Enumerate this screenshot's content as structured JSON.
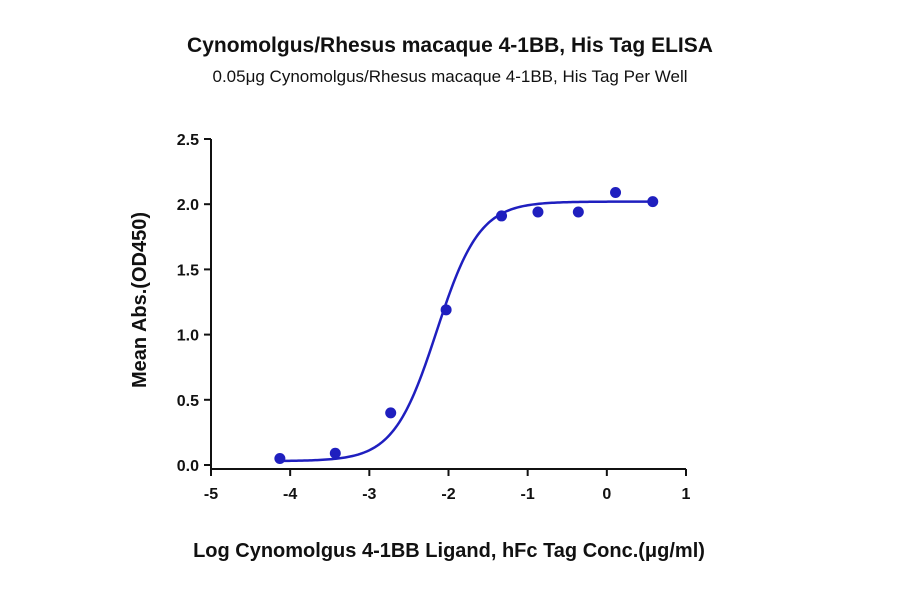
{
  "chart_data": {
    "type": "scatter",
    "title": "Cynomolgus/Rhesus macaque 4-1BB, His Tag ELISA",
    "subtitle": "0.05μg Cynomolgus/Rhesus macaque 4-1BB, His Tag Per Well",
    "xlabel": "Log Cynomolgus 4-1BB Ligand, hFc Tag Conc.(μg/ml)",
    "ylabel": "Mean Abs.(OD450)",
    "xlim": [
      -5,
      1
    ],
    "ylim": [
      0,
      2.5
    ],
    "xticks": [
      -5,
      -4,
      -3,
      -2,
      -1,
      0,
      1
    ],
    "yticks": [
      0,
      0.5,
      1.0,
      1.5,
      2.0,
      2.5
    ],
    "xtick_labels": [
      "-5",
      "-4",
      "-3",
      "-2",
      "-1",
      "0",
      "1"
    ],
    "ytick_labels": [
      "0.0",
      "0.5",
      "1.0",
      "1.5",
      "2.0",
      "2.5"
    ],
    "grid": false,
    "colors": {
      "series": "#1f1fbf",
      "axis": "#111111"
    },
    "points": [
      {
        "x": -4.13,
        "y": 0.05
      },
      {
        "x": -3.43,
        "y": 0.09
      },
      {
        "x": -2.73,
        "y": 0.4
      },
      {
        "x": -2.03,
        "y": 1.19
      },
      {
        "x": -1.33,
        "y": 1.91
      },
      {
        "x": -0.87,
        "y": 1.94
      },
      {
        "x": -0.36,
        "y": 1.94
      },
      {
        "x": 0.11,
        "y": 2.09
      },
      {
        "x": 0.58,
        "y": 2.02
      }
    ],
    "fit_curve": {
      "model": "4PL",
      "bottom": 0.03,
      "top": 2.02,
      "logEC50": -2.15,
      "hillslope": 1.6
    }
  }
}
